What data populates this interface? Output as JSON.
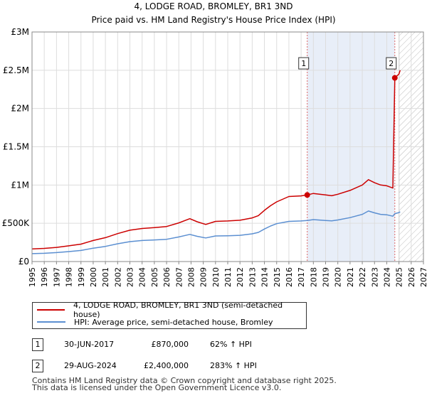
{
  "chart_data": {
    "type": "line",
    "title": "4, LODGE ROAD, BROMLEY, BR1 3ND",
    "subtitle": "Price paid vs. HM Land Registry's House Price Index (HPI)",
    "xlabel": "",
    "ylabel": "",
    "xlim": [
      1995,
      2027
    ],
    "ylim": [
      0,
      3000000
    ],
    "x_ticks": [
      "1995",
      "1996",
      "1997",
      "1998",
      "1999",
      "2000",
      "2001",
      "2002",
      "2003",
      "2004",
      "2005",
      "2006",
      "2007",
      "2008",
      "2009",
      "2010",
      "2011",
      "2012",
      "2013",
      "2014",
      "2015",
      "2016",
      "2017",
      "2018",
      "2019",
      "2020",
      "2021",
      "2022",
      "2023",
      "2024",
      "2025",
      "2026",
      "2027"
    ],
    "y_ticks": [
      {
        "value": 0,
        "label": "£0"
      },
      {
        "value": 500000,
        "label": "£500K"
      },
      {
        "value": 1000000,
        "label": "£1M"
      },
      {
        "value": 1500000,
        "label": "£1.5M"
      },
      {
        "value": 2000000,
        "label": "£2M"
      },
      {
        "value": 2500000,
        "label": "£2.5M"
      },
      {
        "value": 3000000,
        "label": "£3M"
      }
    ],
    "grid": true,
    "shaded_period": {
      "from": 2017.5,
      "to": 2024.66
    },
    "forecast_hatch_from": 2025.0,
    "series": [
      {
        "name": "4, LODGE ROAD, BROMLEY, BR1 3ND (semi-detached house)",
        "color": "#cc0000",
        "x": [
          1995,
          1996,
          1997,
          1998,
          1999,
          2000,
          2001,
          2002,
          2003,
          2004,
          2005,
          2006,
          2007,
          2007.9,
          2008.5,
          2009.2,
          2010,
          2011,
          2012,
          2013,
          2013.5,
          2014,
          2014.5,
          2015,
          2016,
          2017,
          2017.5,
          2018,
          2019,
          2019.5,
          2020,
          2021,
          2022,
          2022.5,
          2023,
          2023.5,
          2024,
          2024.5,
          2024.66,
          2025,
          2025.1
        ],
        "values": [
          165000,
          172000,
          185000,
          205000,
          228000,
          275000,
          312000,
          365000,
          410000,
          432000,
          443000,
          458000,
          505000,
          560000,
          520000,
          485000,
          525000,
          530000,
          540000,
          570000,
          600000,
          670000,
          730000,
          780000,
          850000,
          858000,
          870000,
          890000,
          870000,
          860000,
          880000,
          930000,
          1000000,
          1070000,
          1030000,
          1000000,
          990000,
          960000,
          2400000,
          2450000,
          2500000
        ],
        "note": "Red line; rises to transaction 2 value at 2024.66 and slightly beyond"
      },
      {
        "name": "HPI: Average price, semi-detached house, Bromley",
        "color": "#5b8fd1",
        "x": [
          1995,
          1996,
          1997,
          1998,
          1999,
          2000,
          2001,
          2002,
          2003,
          2004,
          2005,
          2006,
          2007,
          2007.9,
          2008.5,
          2009.2,
          2010,
          2011,
          2012,
          2013,
          2013.5,
          2014,
          2014.5,
          2015,
          2016,
          2017,
          2017.5,
          2018,
          2019,
          2019.5,
          2020,
          2021,
          2022,
          2022.5,
          2023,
          2023.5,
          2024,
          2024.5,
          2024.66,
          2025,
          2025.1
        ],
        "values": [
          103000,
          108000,
          117000,
          130000,
          145000,
          175000,
          198000,
          232000,
          260000,
          275000,
          282000,
          291000,
          321000,
          355000,
          330000,
          308000,
          334000,
          337000,
          343000,
          362000,
          381000,
          425000,
          464000,
          495000,
          525000,
          530000,
          537000,
          548000,
          537000,
          531000,
          543000,
          574000,
          617000,
          660000,
          636000,
          617000,
          611000,
          593000,
          626000,
          640000,
          650000
        ]
      }
    ],
    "transactions": [
      {
        "id": "1",
        "x": 2017.5,
        "value": 870000,
        "date": "30-JUN-2017",
        "price": "£870,000",
        "hpi_change": "62% ↑ HPI"
      },
      {
        "id": "2",
        "x": 2024.66,
        "value": 2400000,
        "date": "29-AUG-2024",
        "price": "£2,400,000",
        "hpi_change": "283% ↑ HPI"
      }
    ]
  },
  "legend": {
    "items": [
      {
        "label": "4, LODGE ROAD, BROMLEY, BR1 3ND (semi-detached house)",
        "color": "#cc0000"
      },
      {
        "label": "HPI: Average price, semi-detached house, Bromley",
        "color": "#5b8fd1"
      }
    ]
  },
  "footer": {
    "line1": "Contains HM Land Registry data © Crown copyright and database right 2025.",
    "line2": "This data is licensed under the Open Government Licence v3.0."
  },
  "colors": {
    "grid": "#dddddd",
    "plot_bg": "#ffffff",
    "shade": "#e8eef8",
    "vline": "#dd6666",
    "hatch": "#bbbbbb",
    "axis": "#888888"
  }
}
